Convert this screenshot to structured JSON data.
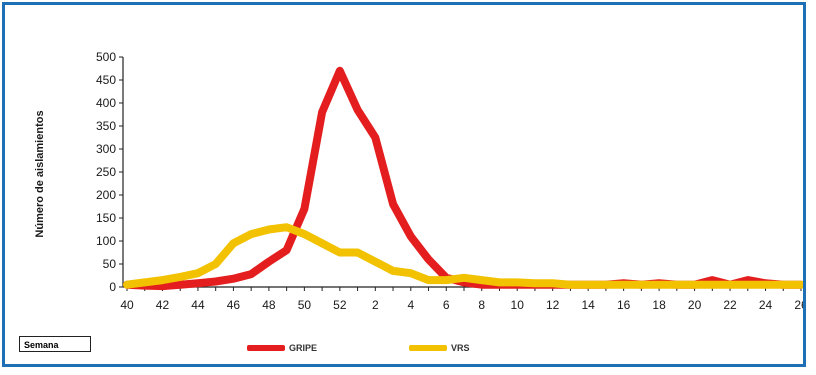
{
  "chart_data": {
    "type": "line",
    "ylabel": "Número de aislamientos",
    "xlabel": "Semana",
    "ylim": [
      0,
      500
    ],
    "yticks": [
      0,
      50,
      100,
      150,
      200,
      250,
      300,
      350,
      400,
      450,
      500
    ],
    "x": [
      40,
      41,
      42,
      43,
      44,
      45,
      46,
      47,
      48,
      49,
      50,
      51,
      52,
      1,
      2,
      3,
      4,
      5,
      6,
      7,
      8,
      9,
      10,
      11,
      12,
      13,
      14,
      15,
      16,
      17,
      18,
      19,
      20,
      21,
      22,
      23,
      24,
      25,
      26
    ],
    "xtick_labels": [
      "40",
      "42",
      "44",
      "46",
      "48",
      "50",
      "52",
      "2",
      "4",
      "6",
      "8",
      "10",
      "12",
      "14",
      "16",
      "18",
      "20",
      "22",
      "24",
      "26"
    ],
    "grid": false,
    "legend_position": "bottom",
    "series": [
      {
        "name": "GRIPE",
        "color": "#e41e1e",
        "values": [
          5,
          3,
          2,
          5,
          8,
          12,
          18,
          28,
          55,
          80,
          170,
          380,
          470,
          385,
          325,
          180,
          110,
          60,
          20,
          10,
          5,
          5,
          5,
          5,
          5,
          5,
          5,
          5,
          8,
          5,
          8,
          5,
          5,
          15,
          5,
          15,
          8,
          5,
          5
        ]
      },
      {
        "name": "VRS",
        "color": "#f2c200",
        "values": [
          5,
          10,
          15,
          22,
          30,
          50,
          95,
          115,
          125,
          130,
          115,
          95,
          75,
          75,
          55,
          35,
          30,
          15,
          15,
          20,
          15,
          10,
          10,
          8,
          8,
          5,
          5,
          5,
          5,
          5,
          5,
          5,
          5,
          5,
          5,
          5,
          5,
          5,
          5
        ]
      }
    ]
  }
}
